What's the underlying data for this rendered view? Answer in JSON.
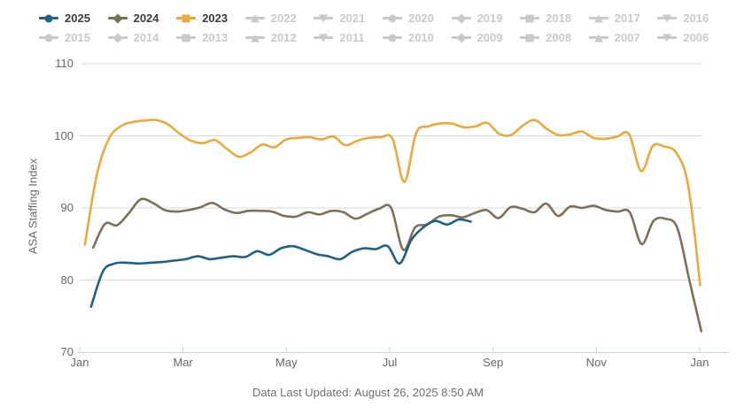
{
  "legend": {
    "rows": [
      [
        {
          "year": "2025",
          "marker": "circle",
          "active": true
        },
        {
          "year": "2024",
          "marker": "diamond",
          "active": true
        },
        {
          "year": "2023",
          "marker": "square",
          "active": true
        },
        {
          "year": "2022",
          "marker": "triangle-up",
          "active": false
        },
        {
          "year": "2021",
          "marker": "triangle-down",
          "active": false
        },
        {
          "year": "2020",
          "marker": "circle",
          "active": false
        },
        {
          "year": "2019",
          "marker": "diamond",
          "active": false
        },
        {
          "year": "2018",
          "marker": "square",
          "active": false
        },
        {
          "year": "2017",
          "marker": "triangle-up",
          "active": false
        },
        {
          "year": "2016",
          "marker": "triangle-down",
          "active": false
        }
      ],
      [
        {
          "year": "2015",
          "marker": "circle",
          "active": false
        },
        {
          "year": "2014",
          "marker": "diamond",
          "active": false
        },
        {
          "year": "2013",
          "marker": "square",
          "active": false
        },
        {
          "year": "2012",
          "marker": "triangle-up",
          "active": false
        },
        {
          "year": "2011",
          "marker": "triangle-down",
          "active": false
        },
        {
          "year": "2010",
          "marker": "circle",
          "active": false
        },
        {
          "year": "2009",
          "marker": "diamond",
          "active": false
        },
        {
          "year": "2008",
          "marker": "square",
          "active": false
        },
        {
          "year": "2007",
          "marker": "triangle-up",
          "active": false
        },
        {
          "year": "2006",
          "marker": "triangle-down",
          "active": false
        }
      ]
    ]
  },
  "colors": {
    "series_2025": "#1f6280",
    "series_2024": "#7e7057",
    "series_2023": "#e9a93c",
    "inactive_legend": "#c9c9c9",
    "active_legend_text": "#3c3c3c",
    "gridline": "#d8d8d8",
    "x_axis": "#c3d6e0",
    "tick_label": "#66666b"
  },
  "chart_data": {
    "type": "line",
    "title": "",
    "xlabel": "",
    "ylabel": "ASA Staffing Index",
    "ylim": [
      70,
      110
    ],
    "yticks": [
      110,
      100,
      90,
      80,
      70
    ],
    "xticks": [
      "Jan",
      "Mar",
      "May",
      "Jul",
      "Sep",
      "Nov",
      "Jan"
    ],
    "grid": true,
    "legend_position": "top",
    "x_unit": "weeks (Jan through Dec)",
    "series": [
      {
        "name": "2023",
        "color": "#e9a93c",
        "x_start_month": 0.1,
        "x_end_month": 12.01,
        "values": [
          84.9,
          94.5,
          99.5,
          101.3,
          101.9,
          102.1,
          102.2,
          101.6,
          100.3,
          99.3,
          99.0,
          99.4,
          98.2,
          97.1,
          97.7,
          98.8,
          98.4,
          99.5,
          99.7,
          99.8,
          99.5,
          99.9,
          98.7,
          99.3,
          99.7,
          99.8,
          99.6,
          93.6,
          100.4,
          101.3,
          101.7,
          101.7,
          101.2,
          101.3,
          101.8,
          100.3,
          100.1,
          101.4,
          102.2,
          101.0,
          100.1,
          100.2,
          100.6,
          99.7,
          99.6,
          99.9,
          100.2,
          95.1,
          98.6,
          98.5,
          97.6,
          93.0,
          79.3
        ]
      },
      {
        "name": "2024",
        "color": "#7e7057",
        "x_start_month": 0.26,
        "x_end_month": 12.03,
        "values": [
          84.5,
          87.8,
          87.6,
          89.3,
          91.2,
          90.7,
          89.7,
          89.5,
          89.7,
          90.1,
          90.7,
          89.8,
          89.3,
          89.6,
          89.6,
          89.5,
          88.9,
          88.8,
          89.4,
          89.1,
          89.6,
          89.4,
          88.5,
          89.2,
          89.9,
          90.0,
          84.2,
          87.3,
          87.7,
          88.8,
          89.0,
          88.7,
          89.3,
          89.7,
          88.6,
          90.1,
          89.9,
          89.4,
          90.6,
          88.9,
          90.2,
          90.0,
          90.3,
          89.7,
          89.5,
          89.4,
          85.0,
          88.2,
          88.5,
          87.2,
          80.0,
          72.9
        ]
      },
      {
        "name": "2025",
        "color": "#1f6280",
        "x_start_month": 0.22,
        "x_end_month": 7.57,
        "values": [
          76.3,
          81.2,
          82.3,
          82.4,
          82.3,
          82.4,
          82.5,
          82.7,
          82.9,
          83.3,
          82.9,
          83.1,
          83.3,
          83.2,
          84.0,
          83.5,
          84.4,
          84.7,
          84.2,
          83.6,
          83.3,
          82.9,
          83.9,
          84.4,
          84.3,
          84.7,
          82.3,
          85.6,
          87.3,
          88.2,
          87.7,
          88.4,
          88.1
        ]
      }
    ]
  },
  "footer": {
    "text": "Data Last Updated: August 26, 2025 8:50 AM"
  }
}
